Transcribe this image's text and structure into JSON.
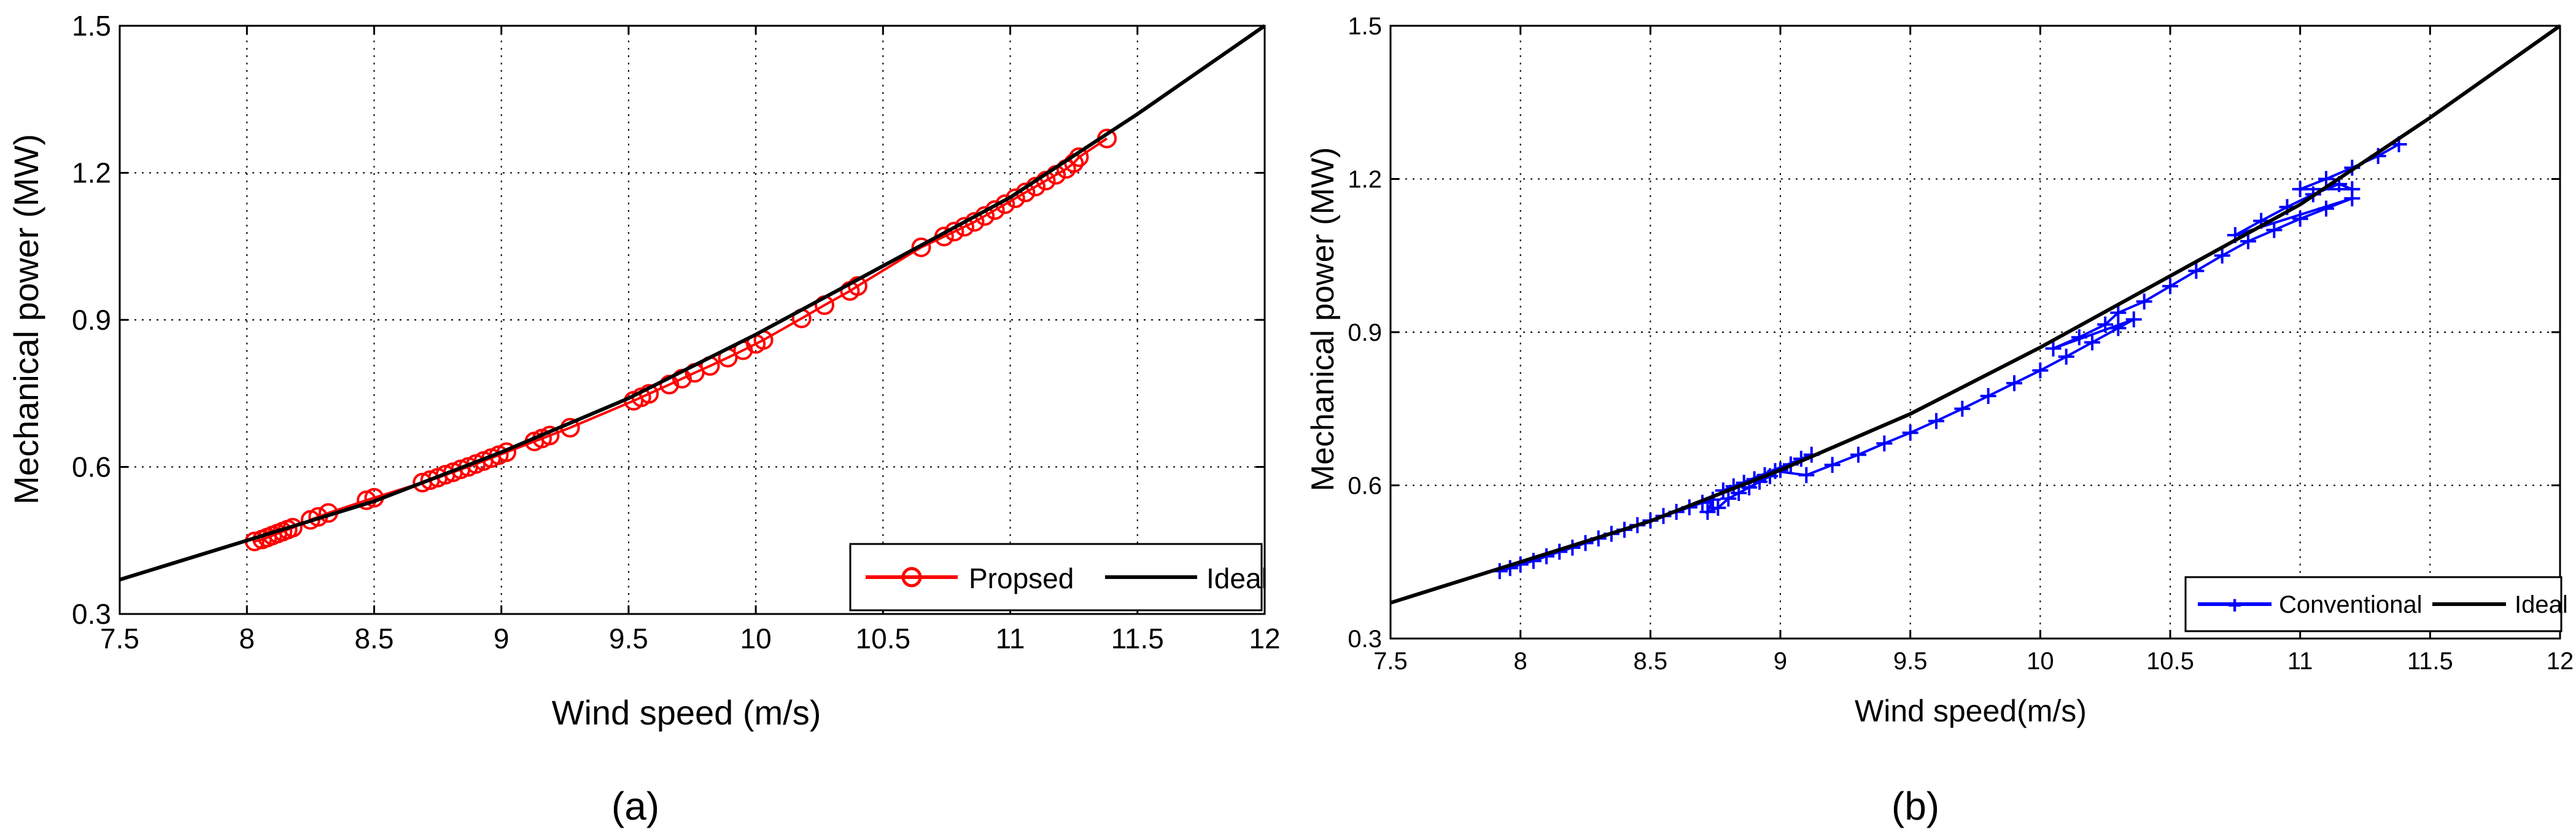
{
  "panels": [
    {
      "caption": "(a)"
    },
    {
      "caption": "(b)"
    }
  ],
  "colors": {
    "ideal": "#000000",
    "proposed": "#ff0000",
    "conventional": "#0000ff",
    "grid": "#000000",
    "background": "#ffffff"
  },
  "chart_data": [
    {
      "type": "scatter",
      "panel": "a",
      "xlabel": "Wind speed (m/s)",
      "ylabel": "Mechanical power (MW)",
      "xlim": [
        7.5,
        12
      ],
      "ylim": [
        0.3,
        1.5
      ],
      "x_ticks": [
        "7.5",
        "8",
        "8.5",
        "9",
        "9.5",
        "10",
        "10.5",
        "11",
        "11.5",
        "12"
      ],
      "y_ticks": [
        "0.3",
        "0.6",
        "0.9",
        "1.2",
        "1.5"
      ],
      "grid": true,
      "legend_position": "bottom-right",
      "series": [
        {
          "name": "Propsed",
          "marker": "circle",
          "color": "#ff0000",
          "points": [
            [
              8.03,
              0.448
            ],
            [
              8.06,
              0.452
            ],
            [
              8.08,
              0.456
            ],
            [
              8.1,
              0.46
            ],
            [
              8.12,
              0.464
            ],
            [
              8.14,
              0.468
            ],
            [
              8.16,
              0.472
            ],
            [
              8.18,
              0.476
            ],
            [
              8.25,
              0.492
            ],
            [
              8.28,
              0.498
            ],
            [
              8.32,
              0.506
            ],
            [
              8.47,
              0.532
            ],
            [
              8.5,
              0.537
            ],
            [
              8.69,
              0.568
            ],
            [
              8.72,
              0.573
            ],
            [
              8.75,
              0.578
            ],
            [
              8.78,
              0.584
            ],
            [
              8.81,
              0.589
            ],
            [
              8.84,
              0.595
            ],
            [
              8.87,
              0.6
            ],
            [
              8.9,
              0.606
            ],
            [
              8.93,
              0.612
            ],
            [
              8.96,
              0.618
            ],
            [
              8.99,
              0.624
            ],
            [
              9.02,
              0.63
            ],
            [
              9.13,
              0.652
            ],
            [
              9.16,
              0.658
            ],
            [
              9.19,
              0.664
            ],
            [
              9.27,
              0.68
            ],
            [
              9.52,
              0.735
            ],
            [
              9.55,
              0.742
            ],
            [
              9.58,
              0.749
            ],
            [
              9.66,
              0.768
            ],
            [
              9.71,
              0.78
            ],
            [
              9.76,
              0.792
            ],
            [
              9.82,
              0.806
            ],
            [
              9.89,
              0.823
            ],
            [
              9.95,
              0.838
            ],
            [
              10.0,
              0.851
            ],
            [
              10.03,
              0.859
            ],
            [
              10.18,
              0.903
            ],
            [
              10.27,
              0.93
            ],
            [
              10.37,
              0.959
            ],
            [
              10.4,
              0.969
            ],
            [
              10.65,
              1.048
            ],
            [
              10.74,
              1.07
            ],
            [
              10.78,
              1.08
            ],
            [
              10.82,
              1.09
            ],
            [
              10.86,
              1.1
            ],
            [
              10.9,
              1.112
            ],
            [
              10.94,
              1.124
            ],
            [
              10.98,
              1.136
            ],
            [
              11.02,
              1.148
            ],
            [
              11.06,
              1.16
            ],
            [
              11.1,
              1.172
            ],
            [
              11.14,
              1.184
            ],
            [
              11.18,
              1.196
            ],
            [
              11.22,
              1.208
            ],
            [
              11.25,
              1.22
            ],
            [
              11.27,
              1.232
            ],
            [
              11.38,
              1.27
            ]
          ]
        },
        {
          "name": "Ideal",
          "marker": "line",
          "color": "#000000",
          "points": [
            [
              7.5,
              0.37
            ],
            [
              8.0,
              0.45
            ],
            [
              8.5,
              0.53
            ],
            [
              9.0,
              0.63
            ],
            [
              9.5,
              0.74
            ],
            [
              10.0,
              0.87
            ],
            [
              10.5,
              1.01
            ],
            [
              11.0,
              1.15
            ],
            [
              11.5,
              1.32
            ],
            [
              12.0,
              1.5
            ]
          ]
        }
      ]
    },
    {
      "type": "scatter",
      "panel": "b",
      "xlabel": "Wind speed(m/s)",
      "ylabel": "Mechanical power (MW)",
      "xlim": [
        7.5,
        12
      ],
      "ylim": [
        0.3,
        1.5
      ],
      "x_ticks": [
        "7.5",
        "8",
        "8.5",
        "9",
        "9.5",
        "10",
        "10.5",
        "11",
        "11.5",
        "12"
      ],
      "y_ticks": [
        "0.3",
        "0.6",
        "0.9",
        "1.2",
        "1.5"
      ],
      "grid": true,
      "legend_position": "bottom-right",
      "series": [
        {
          "name": "Conventional",
          "marker": "star",
          "color": "#0000ff",
          "points": [
            [
              7.92,
              0.432
            ],
            [
              7.96,
              0.438
            ],
            [
              8.0,
              0.445
            ],
            [
              8.05,
              0.452
            ],
            [
              8.1,
              0.461
            ],
            [
              8.15,
              0.47
            ],
            [
              8.2,
              0.478
            ],
            [
              8.25,
              0.487
            ],
            [
              8.3,
              0.496
            ],
            [
              8.35,
              0.505
            ],
            [
              8.4,
              0.513
            ],
            [
              8.45,
              0.522
            ],
            [
              8.5,
              0.531
            ],
            [
              8.55,
              0.54
            ],
            [
              8.6,
              0.548
            ],
            [
              8.65,
              0.557
            ],
            [
              8.7,
              0.566
            ],
            [
              8.74,
              0.572
            ],
            [
              8.72,
              0.548
            ],
            [
              8.76,
              0.556
            ],
            [
              8.8,
              0.574
            ],
            [
              8.84,
              0.585
            ],
            [
              8.88,
              0.596
            ],
            [
              8.92,
              0.607
            ],
            [
              8.96,
              0.618
            ],
            [
              9.0,
              0.63
            ],
            [
              9.04,
              0.641
            ],
            [
              9.08,
              0.652
            ],
            [
              9.12,
              0.66
            ],
            [
              8.78,
              0.59
            ],
            [
              8.82,
              0.598
            ],
            [
              8.86,
              0.605
            ],
            [
              8.9,
              0.612
            ],
            [
              8.94,
              0.62
            ],
            [
              8.98,
              0.628
            ],
            [
              9.1,
              0.62
            ],
            [
              9.2,
              0.64
            ],
            [
              9.3,
              0.66
            ],
            [
              9.4,
              0.682
            ],
            [
              9.5,
              0.703
            ],
            [
              9.6,
              0.726
            ],
            [
              9.7,
              0.75
            ],
            [
              9.8,
              0.775
            ],
            [
              9.9,
              0.8
            ],
            [
              10.0,
              0.825
            ],
            [
              10.1,
              0.852
            ],
            [
              10.2,
              0.88
            ],
            [
              10.3,
              0.908
            ],
            [
              10.36,
              0.925
            ],
            [
              10.05,
              0.868
            ],
            [
              10.15,
              0.89
            ],
            [
              10.25,
              0.915
            ],
            [
              10.3,
              0.938
            ],
            [
              10.4,
              0.96
            ],
            [
              10.5,
              0.99
            ],
            [
              10.6,
              1.02
            ],
            [
              10.7,
              1.05
            ],
            [
              10.8,
              1.078
            ],
            [
              10.9,
              1.1
            ],
            [
              11.0,
              1.122
            ],
            [
              11.1,
              1.142
            ],
            [
              11.2,
              1.162
            ],
            [
              10.75,
              1.09
            ],
            [
              10.85,
              1.118
            ],
            [
              10.95,
              1.145
            ],
            [
              11.05,
              1.17
            ],
            [
              11.15,
              1.19
            ],
            [
              11.2,
              1.18
            ],
            [
              11.0,
              1.18
            ],
            [
              11.1,
              1.2
            ],
            [
              11.2,
              1.222
            ],
            [
              11.3,
              1.245
            ],
            [
              11.38,
              1.268
            ]
          ]
        },
        {
          "name": "Ideal",
          "marker": "line",
          "color": "#000000",
          "points": [
            [
              7.5,
              0.37
            ],
            [
              8.0,
              0.45
            ],
            [
              8.5,
              0.53
            ],
            [
              9.0,
              0.63
            ],
            [
              9.5,
              0.74
            ],
            [
              10.0,
              0.87
            ],
            [
              10.5,
              1.01
            ],
            [
              11.0,
              1.15
            ],
            [
              11.5,
              1.32
            ],
            [
              12.0,
              1.5
            ]
          ]
        }
      ]
    }
  ]
}
